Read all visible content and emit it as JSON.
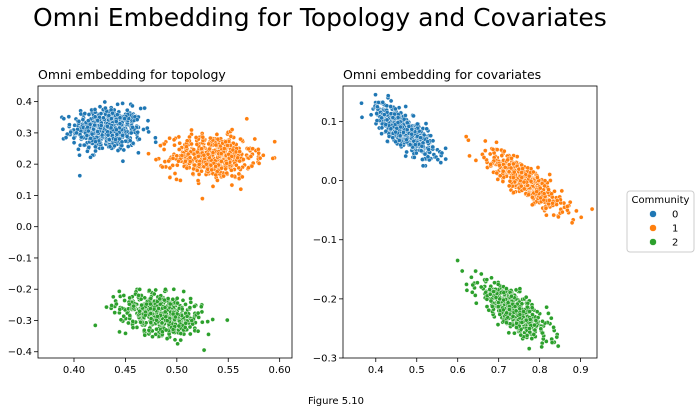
{
  "figure": {
    "suptitle": "Omni Embedding for Topology and Covariates",
    "caption": "Figure 5.10"
  },
  "legend": {
    "title": "Community",
    "placement": "right",
    "items": [
      {
        "label": "0",
        "color": "#1f77b4"
      },
      {
        "label": "1",
        "color": "#ff7f0e"
      },
      {
        "label": "2",
        "color": "#2ca02c"
      }
    ]
  },
  "chart_data": [
    {
      "type": "scatter",
      "title": "Omni embedding for topology",
      "xlabel": "",
      "ylabel": "",
      "xlim": [
        0.365,
        0.612
      ],
      "ylim": [
        -0.42,
        0.45
      ],
      "xticks": [
        0.4,
        0.45,
        0.5,
        0.55,
        0.6
      ],
      "xtick_labels": [
        "0.40",
        "0.45",
        "0.50",
        "0.55",
        "0.60"
      ],
      "yticks": [
        -0.4,
        -0.3,
        -0.2,
        -0.1,
        0.0,
        0.1,
        0.2,
        0.3,
        0.4
      ],
      "ytick_labels": [
        "−0.4",
        "−0.3",
        "−0.2",
        "−0.1",
        "0.0",
        "0.1",
        "0.2",
        "0.3",
        "0.4"
      ],
      "grid": false,
      "series": [
        {
          "name": "0",
          "color": "#1f77b4",
          "n_points": 500,
          "cluster": {
            "x_mean": 0.432,
            "y_mean": 0.31,
            "x_sd": 0.017,
            "y_sd": 0.035,
            "corr": 0.0
          }
        },
        {
          "name": "1",
          "color": "#ff7f0e",
          "n_points": 500,
          "cluster": {
            "x_mean": 0.535,
            "y_mean": 0.225,
            "x_sd": 0.02,
            "y_sd": 0.035,
            "corr": 0.0
          }
        },
        {
          "name": "2",
          "color": "#2ca02c",
          "n_points": 500,
          "cluster": {
            "x_mean": 0.485,
            "y_mean": -0.28,
            "x_sd": 0.02,
            "y_sd": 0.034,
            "corr": -0.3
          }
        }
      ]
    },
    {
      "type": "scatter",
      "title": "Omni embedding for covariates",
      "xlabel": "",
      "ylabel": "",
      "xlim": [
        0.32,
        0.94
      ],
      "ylim": [
        -0.3,
        0.16
      ],
      "xticks": [
        0.4,
        0.5,
        0.6,
        0.7,
        0.8,
        0.9
      ],
      "xtick_labels": [
        "0.4",
        "0.5",
        "0.6",
        "0.7",
        "0.8",
        "0.9"
      ],
      "yticks": [
        -0.3,
        -0.2,
        -0.1,
        0.0,
        0.1
      ],
      "ytick_labels": [
        "−0.3",
        "−0.2",
        "−0.1",
        "0.0",
        "0.1"
      ],
      "grid": false,
      "series": [
        {
          "name": "0",
          "color": "#1f77b4",
          "n_points": 500,
          "cluster": {
            "x_mean": 0.47,
            "y_mean": 0.085,
            "x_sd": 0.035,
            "y_sd": 0.022,
            "corr": -0.75
          }
        },
        {
          "name": "1",
          "color": "#ff7f0e",
          "n_points": 500,
          "cluster": {
            "x_mean": 0.765,
            "y_mean": 0.0,
            "x_sd": 0.045,
            "y_sd": 0.025,
            "corr": -0.85
          }
        },
        {
          "name": "2",
          "color": "#2ca02c",
          "n_points": 500,
          "cluster": {
            "x_mean": 0.735,
            "y_mean": -0.22,
            "x_sd": 0.045,
            "y_sd": 0.025,
            "corr": -0.8
          }
        }
      ]
    }
  ]
}
